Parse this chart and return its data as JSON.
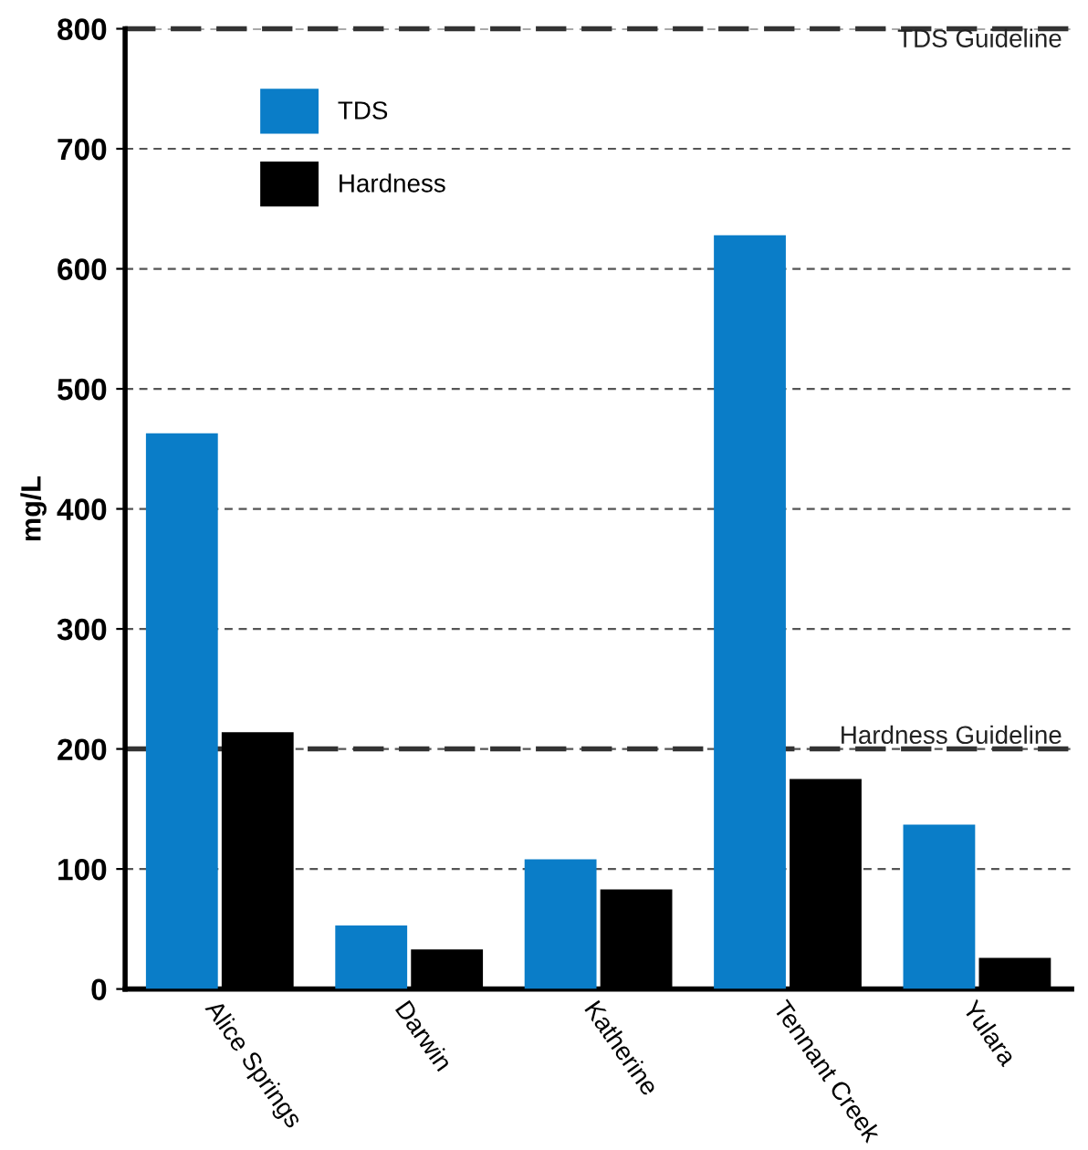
{
  "chart_data": {
    "type": "bar",
    "ylabel": "mg/L",
    "categories": [
      "Alice Springs",
      "Darwin",
      "Katherine",
      "Tennant Creek",
      "Yulara"
    ],
    "series": [
      {
        "name": "TDS",
        "color": "#0a7dc8",
        "values": [
          463,
          53,
          108,
          628,
          137
        ]
      },
      {
        "name": "Hardness",
        "color": "#000000",
        "values": [
          214,
          33,
          83,
          175,
          26
        ]
      }
    ],
    "ylim": [
      0,
      800
    ],
    "yticks": [
      0,
      100,
      200,
      300,
      400,
      500,
      600,
      700,
      800
    ],
    "grid": "y",
    "legend": "top left",
    "ref_lines": [
      {
        "axis": "y",
        "value": 800,
        "label": "TDS Guideline",
        "color": "#333333",
        "line_style": "dashed"
      },
      {
        "axis": "y",
        "value": 200,
        "label": "Hardness Guideline",
        "color": "#333333",
        "line_style": "dashed"
      }
    ]
  }
}
